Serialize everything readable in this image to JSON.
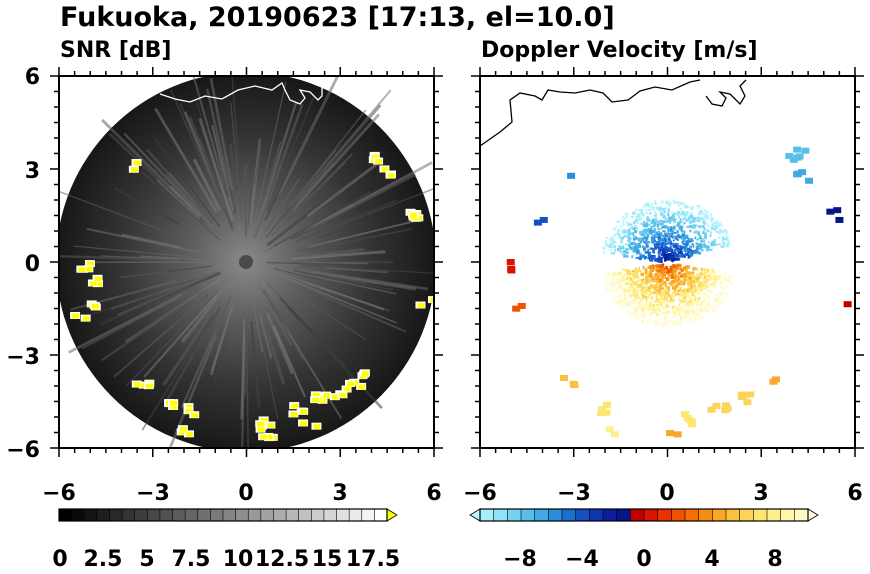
{
  "title": "Fukuoka, 20190623 [17:13, el=10.0]",
  "panels": [
    {
      "name": "snr",
      "subtitle": "SNR [dB]"
    },
    {
      "name": "doppler",
      "subtitle": "Doppler Velocity [m/s]"
    }
  ],
  "chart_data": [
    {
      "type": "heatmap",
      "title": "SNR [dB]",
      "xlim": [
        -6,
        6
      ],
      "ylim": [
        -6,
        6
      ],
      "x_ticks": [
        "−6",
        "−3",
        "0",
        "3",
        "6"
      ],
      "y_ticks": [
        "6",
        "3",
        "0",
        "−3",
        "−6"
      ],
      "colorbar": {
        "ticks": [
          "0",
          "2.5",
          "5",
          "7.5",
          "10",
          "12.5",
          "15",
          "17.5"
        ],
        "range": [
          0,
          20
        ],
        "extend": "max",
        "colors": [
          "#000000",
          "#0a0a0a",
          "#141414",
          "#1e1e1e",
          "#282828",
          "#333333",
          "#3d3d3d",
          "#474747",
          "#515151",
          "#5b5b5b",
          "#666666",
          "#707070",
          "#7a7a7a",
          "#848484",
          "#8e8e8e",
          "#999999",
          "#a3a3a3",
          "#adadad",
          "#b7b7b7",
          "#c1c1c1",
          "#cccccc",
          "#d6d6d6",
          "#e0e0e0",
          "#eaeaea",
          "#f4f4f4",
          "#ffffff",
          "#ffff00"
        ]
      }
    },
    {
      "type": "heatmap",
      "title": "Doppler Velocity [m/s]",
      "xlim": [
        -6,
        6
      ],
      "ylim": [
        -6,
        6
      ],
      "x_ticks": [
        "−6",
        "−3",
        "0",
        "3",
        "6"
      ],
      "y_ticks": [],
      "colorbar": {
        "ticks": [
          "−8",
          "−4",
          "0",
          "4",
          "8"
        ],
        "range": [
          -10,
          10
        ],
        "extend": "both",
        "colors": [
          "#bff6ff",
          "#a7eefc",
          "#8fe3f8",
          "#74d3f2",
          "#58bfeb",
          "#40a8e4",
          "#2a8cdb",
          "#1c6ed1",
          "#1450c4",
          "#0e34b2",
          "#0a1f9e",
          "#06148a",
          "#c00000",
          "#d81400",
          "#e83200",
          "#f05000",
          "#f46e00",
          "#f68c10",
          "#f8a828",
          "#fac040",
          "#fcd458",
          "#fde670",
          "#fff08c",
          "#fff6a8",
          "#fffac4",
          "#fffcde"
        ]
      }
    }
  ]
}
